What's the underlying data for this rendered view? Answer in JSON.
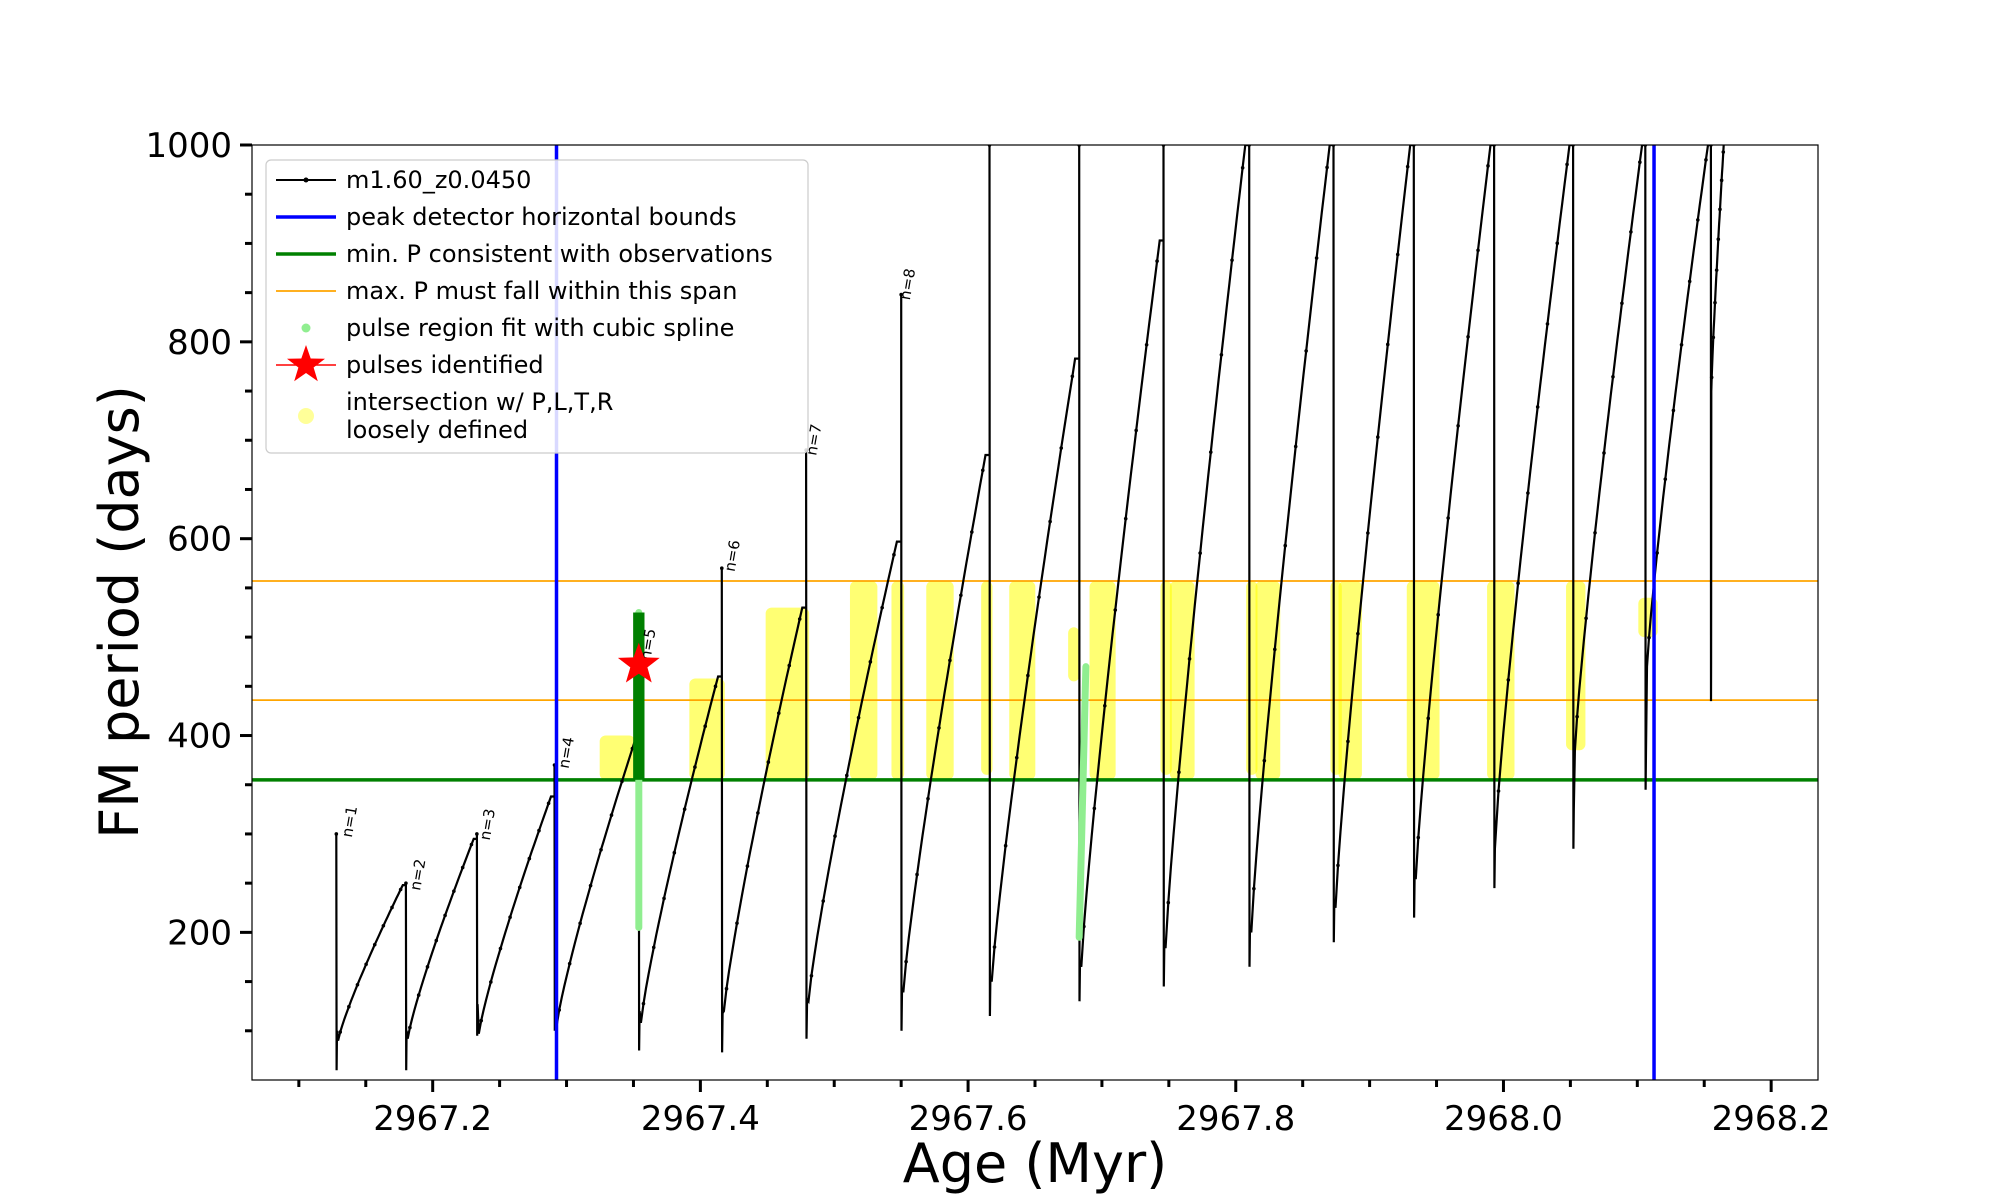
{
  "chart_data": {
    "type": "line",
    "xlabel": "Age (Myr)",
    "ylabel": "FM period (days)",
    "xlim": [
      2967.065,
      2968.235
    ],
    "ylim": [
      50,
      1000
    ],
    "x_ticks": [
      2967.2,
      2967.4,
      2967.6,
      2967.8,
      2968.0,
      2968.2
    ],
    "x_tick_labels": [
      "2967.2",
      "2967.4",
      "2967.6",
      "2967.8",
      "2968.0",
      "2968.2"
    ],
    "y_ticks": [
      200,
      400,
      600,
      800,
      1000
    ],
    "y_tick_labels": [
      "200",
      "400",
      "600",
      "800",
      "1000"
    ],
    "legend": {
      "position": "upper-left",
      "entries": [
        {
          "label": "m1.60_z0.0450",
          "style": "line-marker",
          "color": "#000000"
        },
        {
          "label": "peak detector horizontal bounds",
          "style": "line",
          "color": "#0000ff"
        },
        {
          "label": "min. P consistent with observations",
          "style": "line",
          "color": "#008000"
        },
        {
          "label": "max. P must fall within this span",
          "style": "line",
          "color": "#ffa500"
        },
        {
          "label": "pulse region fit with cubic spline",
          "style": "dot",
          "color": "#90ee90"
        },
        {
          "label": "pulses identified",
          "style": "star",
          "color": "#ff0000"
        },
        {
          "label": "intersection w/ P,L,T,R",
          "label_line2": "loosely defined",
          "style": "big-dot",
          "color": "#ffff99"
        }
      ]
    },
    "vertical_lines": [
      {
        "x": 2967.2925,
        "color": "#0000ff",
        "name": "peak detector left bound"
      },
      {
        "x": 2968.1125,
        "color": "#0000ff",
        "name": "peak detector right bound"
      }
    ],
    "horizontal_lines": [
      {
        "y": 355,
        "color": "#008000",
        "name": "min. P consistent with observations"
      },
      {
        "y": 436,
        "color": "#ffa500",
        "name": "max. P span lower"
      },
      {
        "y": 557,
        "color": "#ffa500",
        "name": "max. P span upper"
      }
    ],
    "pulse_labels": [
      {
        "text": "n=1",
        "x": 2967.135,
        "y": 302
      },
      {
        "text": "n=2",
        "x": 2967.186,
        "y": 248
      },
      {
        "text": "n=3",
        "x": 2967.238,
        "y": 299
      },
      {
        "text": "n=4",
        "x": 2967.297,
        "y": 372
      },
      {
        "text": "n=5",
        "x": 2967.358,
        "y": 482
      },
      {
        "text": "n=6",
        "x": 2967.421,
        "y": 572
      },
      {
        "text": "n=7",
        "x": 2967.482,
        "y": 690
      },
      {
        "text": "n=8",
        "x": 2967.552,
        "y": 848
      }
    ],
    "pulse_cycles": [
      {
        "start": 2967.128,
        "end": 2967.18,
        "min": 90,
        "peak": 248,
        "spike": 300,
        "spike_dip": 60
      },
      {
        "start": 2967.18,
        "end": 2967.233,
        "min": 92,
        "peak": 295,
        "spike": 250,
        "spike_dip": 60
      },
      {
        "start": 2967.233,
        "end": 2967.291,
        "min": 97,
        "peak": 338,
        "spike": 300,
        "spike_dip": 95
      },
      {
        "start": 2967.291,
        "end": 2967.354,
        "min": 105,
        "peak": 395,
        "spike": 370,
        "spike_dip": 100
      },
      {
        "start": 2967.354,
        "end": 2967.416,
        "min": 108,
        "peak": 460,
        "spike": 525,
        "spike_dip": 80
      },
      {
        "start": 2967.416,
        "end": 2967.479,
        "min": 120,
        "peak": 530,
        "spike": 570,
        "spike_dip": 78
      },
      {
        "start": 2967.479,
        "end": 2967.55,
        "min": 130,
        "peak": 597,
        "spike": 690,
        "spike_dip": 92
      },
      {
        "start": 2967.55,
        "end": 2967.616,
        "min": 140,
        "peak": 685,
        "spike": 848,
        "spike_dip": 100
      },
      {
        "start": 2967.616,
        "end": 2967.683,
        "min": 150,
        "peak": 783,
        "spike": 1000,
        "spike_dip": 115
      },
      {
        "start": 2967.683,
        "end": 2967.746,
        "min": 165,
        "peak": 903,
        "spike": 1000,
        "spike_dip": 130
      },
      {
        "start": 2967.746,
        "end": 2967.81,
        "min": 185,
        "peak": 1000,
        "spike": 1000,
        "spike_dip": 145
      },
      {
        "start": 2967.81,
        "end": 2967.873,
        "min": 200,
        "peak": 1000,
        "spike": 1000,
        "spike_dip": 165
      },
      {
        "start": 2967.873,
        "end": 2967.933,
        "min": 225,
        "peak": 1000,
        "spike": 1000,
        "spike_dip": 190
      },
      {
        "start": 2967.933,
        "end": 2967.993,
        "min": 255,
        "peak": 1000,
        "spike": 1000,
        "spike_dip": 215
      },
      {
        "start": 2967.993,
        "end": 2968.052,
        "min": 305,
        "peak": 1000,
        "spike": 1000,
        "spike_dip": 245
      },
      {
        "start": 2968.052,
        "end": 2968.106,
        "min": 385,
        "peak": 1000,
        "spike": 1000,
        "spike_dip": 285
      },
      {
        "start": 2968.106,
        "end": 2968.155,
        "min": 470,
        "peak": 1000,
        "spike": 1000,
        "spike_dip": 345
      },
      {
        "start": 2968.155,
        "end": 2968.165,
        "min": 750,
        "peak": 1000,
        "spike": 1000,
        "spike_dip": 435
      }
    ],
    "highlight_bands": [
      {
        "x0": 2967.327,
        "x1": 2967.349,
        "y0": 355,
        "y1": 400
      },
      {
        "x0": 2967.394,
        "x1": 2967.416,
        "y0": 355,
        "y1": 458
      },
      {
        "x0": 2967.451,
        "x1": 2967.479,
        "y0": 355,
        "y1": 530
      },
      {
        "x0": 2967.514,
        "x1": 2967.53,
        "y0": 355,
        "y1": 557
      },
      {
        "x0": 2967.545,
        "x1": 2967.55,
        "y0": 355,
        "y1": 557
      },
      {
        "x0": 2967.571,
        "x1": 2967.587,
        "y0": 355,
        "y1": 557
      },
      {
        "x0": 2967.612,
        "x1": 2967.616,
        "y0": 360,
        "y1": 557
      },
      {
        "x0": 2967.633,
        "x1": 2967.648,
        "y0": 355,
        "y1": 557
      },
      {
        "x0": 2967.677,
        "x1": 2967.681,
        "y0": 455,
        "y1": 510
      },
      {
        "x0": 2967.693,
        "x1": 2967.708,
        "y0": 355,
        "y1": 557
      },
      {
        "x0": 2967.746,
        "x1": 2967.75,
        "y0": 360,
        "y1": 557
      },
      {
        "x0": 2967.753,
        "x1": 2967.767,
        "y0": 355,
        "y1": 557
      },
      {
        "x0": 2967.81,
        "x1": 2967.814,
        "y0": 360,
        "y1": 557
      },
      {
        "x0": 2967.817,
        "x1": 2967.831,
        "y0": 355,
        "y1": 557
      },
      {
        "x0": 2967.873,
        "x1": 2967.877,
        "y0": 360,
        "y1": 557
      },
      {
        "x0": 2967.879,
        "x1": 2967.892,
        "y0": 355,
        "y1": 557
      },
      {
        "x0": 2967.93,
        "x1": 2967.95,
        "y0": 355,
        "y1": 557
      },
      {
        "x0": 2967.99,
        "x1": 2968.006,
        "y0": 355,
        "y1": 557
      },
      {
        "x0": 2968.049,
        "x1": 2968.059,
        "y0": 385,
        "y1": 557
      },
      {
        "x0": 2968.103,
        "x1": 2968.113,
        "y0": 500,
        "y1": 540
      }
    ],
    "spline_fits": [
      {
        "x0": 2967.354,
        "x1": 2967.354,
        "y0": 205,
        "y1": 525
      },
      {
        "x0": 2967.683,
        "x1": 2967.688,
        "y0": 195,
        "y1": 470
      }
    ],
    "green_highlight": {
      "x0": 2967.352,
      "x1": 2967.356,
      "y0": 355,
      "y1": 525
    },
    "pulses_identified": [
      {
        "x": 2967.354,
        "y": 472
      }
    ]
  }
}
